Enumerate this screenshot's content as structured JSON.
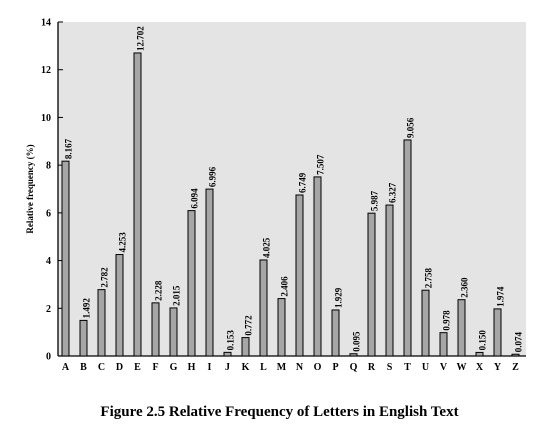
{
  "chart_data": {
    "type": "bar",
    "title": "",
    "xlabel": "",
    "ylabel": "Relative frequency (%)",
    "ylim": [
      0,
      14
    ],
    "yticks": [
      0,
      2,
      4,
      6,
      8,
      10,
      12,
      14
    ],
    "grid": false,
    "categories": [
      "A",
      "B",
      "C",
      "D",
      "E",
      "F",
      "G",
      "H",
      "I",
      "J",
      "K",
      "L",
      "M",
      "N",
      "O",
      "P",
      "Q",
      "R",
      "S",
      "T",
      "U",
      "V",
      "W",
      "X",
      "Y",
      "Z"
    ],
    "values": [
      8.167,
      1.492,
      2.782,
      4.253,
      12.702,
      2.228,
      2.015,
      6.094,
      6.996,
      0.153,
      0.772,
      4.025,
      2.406,
      6.749,
      7.507,
      1.929,
      0.095,
      5.987,
      6.327,
      9.056,
      2.758,
      0.978,
      2.36,
      0.15,
      1.974,
      0.074
    ],
    "value_labels": [
      "8.167",
      "1.492",
      "2.782",
      "4.253",
      "12.702",
      "2.228",
      "2.015",
      "6.094",
      "6.996",
      "0.153",
      "0.772",
      "4.025",
      "2.406",
      "6.749",
      "7.507",
      "1.929",
      "0.095",
      "5.987",
      "6.327",
      "9.056",
      "2.758",
      "0.978",
      "2.360",
      "0.150",
      "1.974",
      "0.074"
    ],
    "colors": {
      "plot_background": "#e4e4e4",
      "bar_fill": "#a6a6a6",
      "bar_stroke": "#000000",
      "axis": "#000000"
    }
  },
  "caption": "Figure 2.5   Relative Frequency of Letters in English Text"
}
